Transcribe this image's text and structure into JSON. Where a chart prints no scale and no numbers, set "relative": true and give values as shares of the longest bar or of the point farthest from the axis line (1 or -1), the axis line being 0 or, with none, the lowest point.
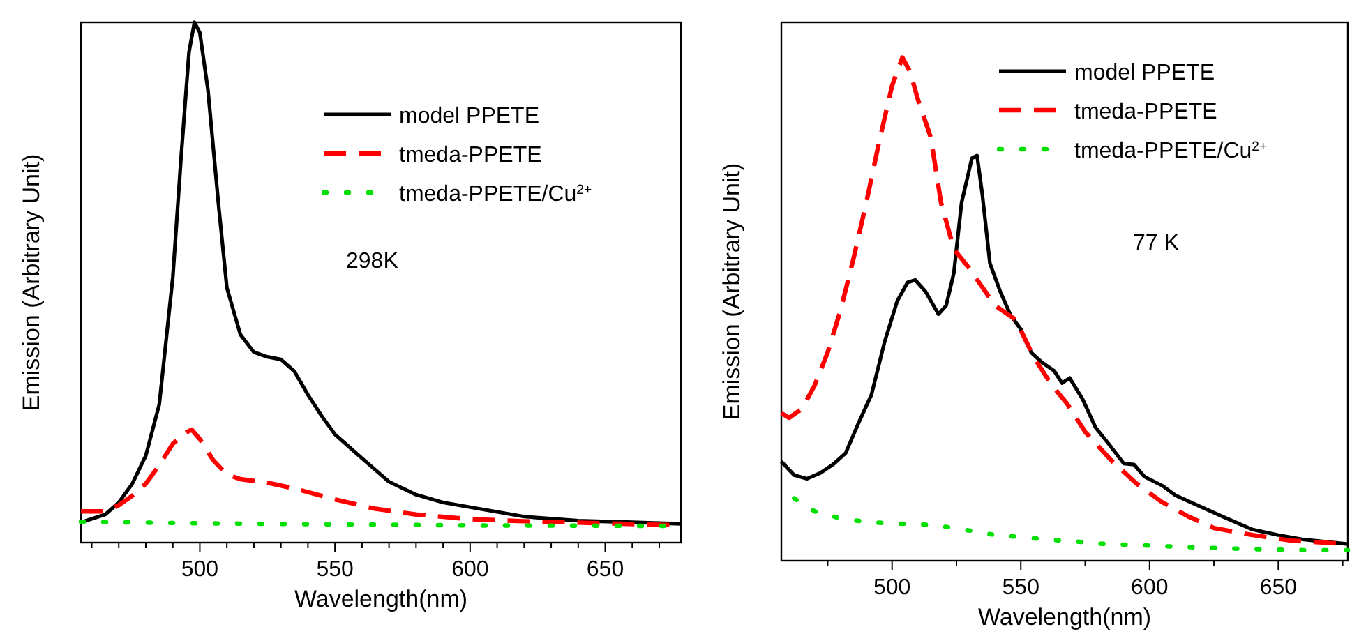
{
  "chart_data": [
    {
      "type": "line",
      "relative": true,
      "xlabel": "Wavelength(nm)",
      "ylabel": "Emission (Arbitrary Unit)",
      "xlim": [
        456,
        678
      ],
      "xticks": [
        {
          "value": 460,
          "label": null
        },
        {
          "value": 470,
          "label": null
        },
        {
          "value": 480,
          "label": null
        },
        {
          "value": 490,
          "label": null
        },
        500,
        {
          "value": 510,
          "label": null
        },
        {
          "value": 520,
          "label": null
        },
        {
          "value": 530,
          "label": null
        },
        {
          "value": 540,
          "label": null
        },
        550,
        {
          "value": 560,
          "label": null
        },
        {
          "value": 570,
          "label": null
        },
        {
          "value": 580,
          "label": null
        },
        {
          "value": 590,
          "label": null
        },
        600,
        {
          "value": 610,
          "label": null
        },
        {
          "value": 620,
          "label": null
        },
        {
          "value": 630,
          "label": null
        },
        {
          "value": 640,
          "label": null
        },
        650,
        {
          "value": 660,
          "label": null
        },
        {
          "value": 670,
          "label": null
        }
      ],
      "legend": "top right",
      "grid": false,
      "annotations": [
        "298K"
      ],
      "series": [
        {
          "name": "model PPETE",
          "color": "#000000",
          "line_style": "solid",
          "x": [
            456,
            465,
            470,
            475,
            480,
            485,
            490,
            493,
            496,
            498,
            500,
            503,
            507,
            510,
            515,
            520,
            525,
            530,
            535,
            540,
            545,
            550,
            555,
            560,
            570,
            580,
            590,
            600,
            620,
            640,
            660,
            678
          ],
          "values": [
            0.039,
            0.054,
            0.077,
            0.113,
            0.167,
            0.266,
            0.51,
            0.736,
            0.943,
            1,
            0.98,
            0.87,
            0.645,
            0.49,
            0.4,
            0.366,
            0.357,
            0.352,
            0.329,
            0.284,
            0.244,
            0.208,
            0.185,
            0.162,
            0.117,
            0.092,
            0.077,
            0.068,
            0.05,
            0.042,
            0.039,
            0.036
          ]
        },
        {
          "name": "tmeda-PPETE",
          "color": "#ff0000",
          "line_style": "dashed",
          "x": [
            456,
            465,
            470,
            475,
            480,
            485,
            490,
            495,
            497,
            500,
            505,
            510,
            515,
            525,
            535,
            550,
            565,
            580,
            600,
            620,
            650,
            678
          ],
          "values": [
            0.06,
            0.06,
            0.072,
            0.09,
            0.113,
            0.149,
            0.19,
            0.212,
            0.217,
            0.199,
            0.158,
            0.131,
            0.122,
            0.115,
            0.104,
            0.083,
            0.065,
            0.054,
            0.045,
            0.041,
            0.037,
            0.033
          ]
        },
        {
          "name": "tmeda-PPETE/Cu$^{2+}$",
          "color": "#00e000",
          "line_style": "dotted",
          "x": [
            456,
            500,
            550,
            600,
            678
          ],
          "values": [
            0.04,
            0.037,
            0.035,
            0.033,
            0.032
          ]
        }
      ]
    },
    {
      "type": "line",
      "relative": true,
      "xlabel": "Wavelength(nm)",
      "ylabel": "Emission (Arbitrary Unit)",
      "xlim": [
        457,
        677
      ],
      "xticks": [
        {
          "value": 475,
          "label": null
        },
        500,
        {
          "value": 525,
          "label": null
        },
        550,
        {
          "value": 575,
          "label": null
        },
        600,
        {
          "value": 625,
          "label": null
        },
        650,
        {
          "value": 675,
          "label": null
        }
      ],
      "legend": "top right",
      "grid": false,
      "annotations": [
        "77 K"
      ],
      "series": [
        {
          "name": "model PPETE",
          "color": "#000000",
          "line_style": "solid",
          "x": [
            457,
            462,
            467,
            472,
            477,
            482,
            487,
            492,
            497,
            502,
            506,
            509,
            513,
            518,
            521,
            524,
            527,
            531,
            533,
            535,
            538,
            542,
            546,
            550,
            554,
            558,
            563,
            566,
            569,
            574,
            579,
            584,
            590,
            594,
            598,
            605,
            610,
            620,
            630,
            640,
            650,
            660,
            677
          ],
          "values": [
            0.197,
            0.17,
            0.163,
            0.174,
            0.191,
            0.214,
            0.274,
            0.33,
            0.433,
            0.516,
            0.553,
            0.558,
            0.535,
            0.49,
            0.507,
            0.572,
            0.712,
            0.8,
            0.805,
            0.73,
            0.591,
            0.535,
            0.488,
            0.46,
            0.414,
            0.395,
            0.377,
            0.353,
            0.363,
            0.321,
            0.265,
            0.233,
            0.193,
            0.191,
            0.167,
            0.149,
            0.13,
            0.107,
            0.084,
            0.062,
            0.051,
            0.042,
            0.033
          ]
        },
        {
          "name": "tmeda-PPETE",
          "color": "#ff0000",
          "line_style": "dashed",
          "x": [
            457,
            460,
            465,
            470,
            475,
            480,
            485,
            490,
            495,
            500,
            504,
            507,
            510,
            515,
            519,
            524,
            530,
            535,
            540,
            548,
            555,
            562,
            568,
            575,
            585,
            595,
            605,
            615,
            625,
            640,
            655,
            677
          ],
          "values": [
            0.293,
            0.284,
            0.302,
            0.349,
            0.414,
            0.498,
            0.6,
            0.712,
            0.833,
            0.944,
            1,
            0.972,
            0.917,
            0.842,
            0.712,
            0.619,
            0.581,
            0.544,
            0.507,
            0.479,
            0.405,
            0.349,
            0.312,
            0.256,
            0.2,
            0.153,
            0.116,
            0.088,
            0.065,
            0.051,
            0.04,
            0.033
          ]
        },
        {
          "name": "tmeda-PPETE/Cu$^{2+}$",
          "color": "#00e000",
          "line_style": "dotted",
          "x": [
            462,
            470,
            480,
            490,
            500,
            510,
            520,
            530,
            540,
            550,
            560,
            570,
            580,
            600,
            620,
            640,
            660,
            677
          ],
          "values": [
            0.124,
            0.098,
            0.084,
            0.077,
            0.074,
            0.073,
            0.068,
            0.06,
            0.051,
            0.047,
            0.042,
            0.039,
            0.034,
            0.03,
            0.026,
            0.023,
            0.021,
            0.021
          ]
        }
      ]
    }
  ]
}
